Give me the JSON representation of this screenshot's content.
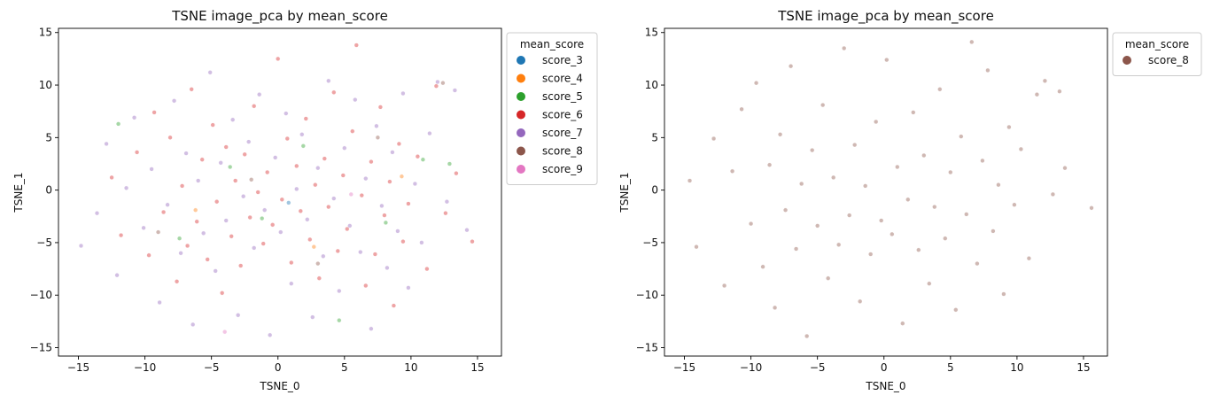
{
  "chart_data": [
    {
      "type": "scatter",
      "title": "TSNE image_pca by mean_score",
      "xlabel": "TSNE_0",
      "ylabel": "TSNE_1",
      "xlim": [
        -16.5,
        16.8
      ],
      "ylim": [
        -15.8,
        15.4
      ],
      "xticks": [
        -15,
        -10,
        -5,
        0,
        5,
        10,
        15
      ],
      "yticks": [
        -15,
        -10,
        -5,
        0,
        5,
        10,
        15
      ],
      "grid": false,
      "legend": {
        "title": "mean_score",
        "placement": "outside-right",
        "entries": [
          {
            "name": "score_3",
            "color": "#1f77b4"
          },
          {
            "name": "score_4",
            "color": "#ff7f0e"
          },
          {
            "name": "score_5",
            "color": "#2ca02c"
          },
          {
            "name": "score_6",
            "color": "#d62728"
          },
          {
            "name": "score_7",
            "color": "#9467bd"
          },
          {
            "name": "score_8",
            "color": "#8c564b"
          },
          {
            "name": "score_9",
            "color": "#e377c2"
          }
        ]
      },
      "series": [
        {
          "name": "score_6",
          "color": "#d62728",
          "points": [
            [
              -12.5,
              1.2
            ],
            [
              -11.8,
              -4.3
            ],
            [
              -10.6,
              3.6
            ],
            [
              -9.7,
              -6.2
            ],
            [
              -9.3,
              7.4
            ],
            [
              -8.6,
              -2.1
            ],
            [
              -8.1,
              5.0
            ],
            [
              -7.6,
              -8.7
            ],
            [
              -7.2,
              0.4
            ],
            [
              -6.8,
              -5.3
            ],
            [
              -6.5,
              9.6
            ],
            [
              -6.1,
              -3.0
            ],
            [
              -5.7,
              2.9
            ],
            [
              -5.3,
              -6.6
            ],
            [
              -4.9,
              6.2
            ],
            [
              -4.6,
              -1.1
            ],
            [
              -4.2,
              -9.8
            ],
            [
              -3.9,
              4.1
            ],
            [
              -3.5,
              -4.4
            ],
            [
              -3.2,
              0.9
            ],
            [
              -2.8,
              -7.2
            ],
            [
              -2.5,
              3.4
            ],
            [
              -2.1,
              -2.6
            ],
            [
              -1.8,
              8.0
            ],
            [
              -1.5,
              -0.2
            ],
            [
              -1.1,
              -5.1
            ],
            [
              -0.8,
              1.7
            ],
            [
              -0.4,
              -3.3
            ],
            [
              0.0,
              12.5
            ],
            [
              0.3,
              -0.9
            ],
            [
              0.7,
              4.9
            ],
            [
              1.0,
              -6.9
            ],
            [
              1.4,
              2.3
            ],
            [
              1.7,
              -2.0
            ],
            [
              2.1,
              6.8
            ],
            [
              2.4,
              -4.7
            ],
            [
              2.8,
              0.5
            ],
            [
              3.1,
              -8.4
            ],
            [
              3.5,
              3.0
            ],
            [
              3.8,
              -1.6
            ],
            [
              4.2,
              9.3
            ],
            [
              4.5,
              -5.8
            ],
            [
              4.9,
              1.4
            ],
            [
              5.2,
              -3.7
            ],
            [
              5.6,
              5.6
            ],
            [
              5.9,
              13.8
            ],
            [
              6.3,
              -0.5
            ],
            [
              6.6,
              -9.1
            ],
            [
              7.0,
              2.7
            ],
            [
              7.3,
              -6.1
            ],
            [
              7.7,
              7.9
            ],
            [
              8.0,
              -2.4
            ],
            [
              8.4,
              0.8
            ],
            [
              8.7,
              -11.0
            ],
            [
              9.1,
              4.4
            ],
            [
              9.4,
              -4.9
            ],
            [
              9.8,
              -1.3
            ],
            [
              10.5,
              3.2
            ],
            [
              11.2,
              -7.5
            ],
            [
              11.9,
              9.9
            ],
            [
              12.6,
              -2.2
            ],
            [
              13.4,
              1.6
            ],
            [
              14.6,
              -4.9
            ]
          ]
        },
        {
          "name": "score_7",
          "color": "#9467bd",
          "points": [
            [
              -14.8,
              -5.3
            ],
            [
              -13.6,
              -2.2
            ],
            [
              -12.9,
              4.4
            ],
            [
              -12.1,
              -8.1
            ],
            [
              -11.4,
              0.2
            ],
            [
              -10.8,
              6.9
            ],
            [
              -10.1,
              -3.6
            ],
            [
              -9.5,
              2.0
            ],
            [
              -8.9,
              -10.7
            ],
            [
              -8.3,
              -1.4
            ],
            [
              -7.8,
              8.5
            ],
            [
              -7.3,
              -6.0
            ],
            [
              -6.9,
              3.5
            ],
            [
              -6.4,
              -12.8
            ],
            [
              -6.0,
              0.9
            ],
            [
              -5.6,
              -4.1
            ],
            [
              -5.1,
              11.2
            ],
            [
              -4.7,
              -7.7
            ],
            [
              -4.3,
              2.6
            ],
            [
              -3.9,
              -2.9
            ],
            [
              -3.4,
              6.7
            ],
            [
              -3.0,
              -11.9
            ],
            [
              -2.6,
              -0.6
            ],
            [
              -2.2,
              4.6
            ],
            [
              -1.8,
              -5.5
            ],
            [
              -1.4,
              9.1
            ],
            [
              -1.0,
              -1.9
            ],
            [
              -0.6,
              -13.8
            ],
            [
              -0.2,
              3.1
            ],
            [
              0.2,
              -4.0
            ],
            [
              0.6,
              7.3
            ],
            [
              1.0,
              -8.9
            ],
            [
              1.4,
              0.1
            ],
            [
              1.8,
              5.3
            ],
            [
              2.2,
              -2.8
            ],
            [
              2.6,
              -12.1
            ],
            [
              3.0,
              2.1
            ],
            [
              3.4,
              -6.3
            ],
            [
              3.8,
              10.4
            ],
            [
              4.2,
              -0.8
            ],
            [
              4.6,
              -9.6
            ],
            [
              5.0,
              4.0
            ],
            [
              5.4,
              -3.4
            ],
            [
              5.8,
              8.6
            ],
            [
              6.2,
              -5.9
            ],
            [
              6.6,
              1.1
            ],
            [
              7.0,
              -13.2
            ],
            [
              7.4,
              6.1
            ],
            [
              7.8,
              -1.5
            ],
            [
              8.2,
              -7.4
            ],
            [
              8.6,
              3.6
            ],
            [
              9.0,
              -3.9
            ],
            [
              9.4,
              9.2
            ],
            [
              9.8,
              -9.3
            ],
            [
              10.3,
              0.6
            ],
            [
              10.8,
              -5.0
            ],
            [
              11.4,
              5.4
            ],
            [
              12.0,
              10.3
            ],
            [
              12.7,
              -1.1
            ],
            [
              13.3,
              9.5
            ],
            [
              14.2,
              -3.8
            ]
          ]
        },
        {
          "name": "score_5",
          "color": "#2ca02c",
          "points": [
            [
              -12.0,
              6.3
            ],
            [
              -7.4,
              -4.6
            ],
            [
              -3.6,
              2.2
            ],
            [
              -1.2,
              -2.7
            ],
            [
              1.9,
              4.2
            ],
            [
              4.6,
              -12.4
            ],
            [
              8.1,
              -3.1
            ],
            [
              10.9,
              2.9
            ],
            [
              12.9,
              2.5
            ]
          ]
        },
        {
          "name": "score_4",
          "color": "#ff7f0e",
          "points": [
            [
              -6.2,
              -1.9
            ],
            [
              2.7,
              -5.4
            ],
            [
              9.3,
              1.3
            ]
          ]
        },
        {
          "name": "score_8",
          "color": "#8c564b",
          "points": [
            [
              -9.0,
              -4.0
            ],
            [
              -2.0,
              1.0
            ],
            [
              3.0,
              -7.0
            ],
            [
              7.5,
              5.0
            ],
            [
              12.4,
              10.2
            ]
          ]
        },
        {
          "name": "score_9",
          "color": "#e377c2",
          "points": [
            [
              -4.0,
              -13.5
            ],
            [
              5.5,
              -0.4
            ]
          ]
        },
        {
          "name": "score_3",
          "color": "#1f77b4",
          "points": [
            [
              0.8,
              -1.2
            ]
          ]
        }
      ]
    },
    {
      "type": "scatter",
      "title": "TSNE image_pca by mean_score",
      "xlabel": "TSNE_0",
      "ylabel": "TSNE_1",
      "xlim": [
        -16.5,
        16.8
      ],
      "ylim": [
        -15.8,
        15.4
      ],
      "xticks": [
        -15,
        -10,
        -5,
        0,
        5,
        10,
        15
      ],
      "yticks": [
        -15,
        -10,
        -5,
        0,
        5,
        10,
        15
      ],
      "grid": false,
      "legend": {
        "title": "mean_score",
        "placement": "outside-right",
        "entries": [
          {
            "name": "score_8",
            "color": "#8c564b"
          }
        ]
      },
      "series": [
        {
          "name": "score_8",
          "color": "#8c564b",
          "points": [
            [
              -14.6,
              0.9
            ],
            [
              -14.1,
              -5.4
            ],
            [
              -12.8,
              4.9
            ],
            [
              -12.0,
              -9.1
            ],
            [
              -11.4,
              1.8
            ],
            [
              -10.7,
              7.7
            ],
            [
              -10.0,
              -3.2
            ],
            [
              -9.6,
              10.2
            ],
            [
              -9.1,
              -7.3
            ],
            [
              -8.6,
              2.4
            ],
            [
              -8.2,
              -11.2
            ],
            [
              -7.8,
              5.3
            ],
            [
              -7.4,
              -1.9
            ],
            [
              -7.0,
              11.8
            ],
            [
              -6.6,
              -5.6
            ],
            [
              -6.2,
              0.6
            ],
            [
              -5.8,
              -13.9
            ],
            [
              -5.4,
              3.8
            ],
            [
              -5.0,
              -3.4
            ],
            [
              -4.6,
              8.1
            ],
            [
              -4.2,
              -8.4
            ],
            [
              -3.8,
              1.2
            ],
            [
              -3.4,
              -5.2
            ],
            [
              -3.0,
              13.5
            ],
            [
              -2.6,
              -2.4
            ],
            [
              -2.2,
              4.3
            ],
            [
              -1.8,
              -10.6
            ],
            [
              -1.4,
              0.4
            ],
            [
              -1.0,
              -6.1
            ],
            [
              -0.6,
              6.5
            ],
            [
              -0.2,
              -2.9
            ],
            [
              0.2,
              12.4
            ],
            [
              0.6,
              -4.2
            ],
            [
              1.0,
              2.2
            ],
            [
              1.4,
              -12.7
            ],
            [
              1.8,
              -0.9
            ],
            [
              2.2,
              7.4
            ],
            [
              2.6,
              -5.7
            ],
            [
              3.0,
              3.3
            ],
            [
              3.4,
              -8.9
            ],
            [
              3.8,
              -1.6
            ],
            [
              4.2,
              9.6
            ],
            [
              4.6,
              -4.6
            ],
            [
              5.0,
              1.7
            ],
            [
              5.4,
              -11.4
            ],
            [
              5.8,
              5.1
            ],
            [
              6.2,
              -2.3
            ],
            [
              6.6,
              14.1
            ],
            [
              7.0,
              -7.0
            ],
            [
              7.4,
              2.8
            ],
            [
              7.8,
              11.4
            ],
            [
              8.2,
              -3.9
            ],
            [
              8.6,
              0.5
            ],
            [
              9.0,
              -9.9
            ],
            [
              9.4,
              6.0
            ],
            [
              9.8,
              -1.4
            ],
            [
              10.3,
              3.9
            ],
            [
              10.9,
              -6.5
            ],
            [
              11.5,
              9.1
            ],
            [
              12.1,
              10.4
            ],
            [
              12.7,
              -0.4
            ],
            [
              13.2,
              9.4
            ],
            [
              13.6,
              2.1
            ],
            [
              15.6,
              -1.7
            ]
          ]
        }
      ]
    }
  ]
}
